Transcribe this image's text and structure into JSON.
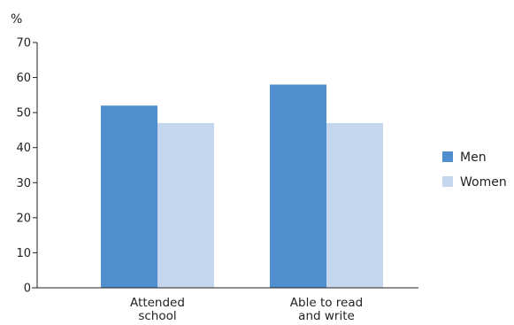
{
  "chart_data": {
    "type": "bar",
    "ylabel": "%",
    "ylim": [
      0,
      70
    ],
    "yticks": [
      0,
      10,
      20,
      30,
      40,
      50,
      60,
      70
    ],
    "grid": false,
    "legend_position": "right",
    "categories": [
      [
        "Attended",
        "school"
      ],
      [
        "Able to read",
        "and write"
      ]
    ],
    "series": [
      {
        "name": "Men",
        "color": "#4f8fcd",
        "values": [
          52,
          58
        ]
      },
      {
        "name": "Women",
        "color": "#c5d6ef",
        "values": [
          47,
          47
        ]
      }
    ]
  }
}
